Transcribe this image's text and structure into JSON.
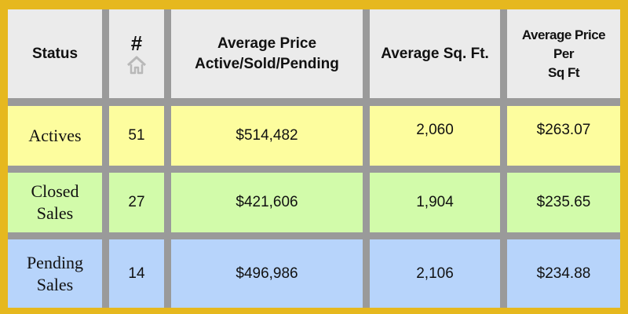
{
  "chart_data": {
    "type": "table",
    "columns": [
      "Status",
      "#",
      "Average Price Active/Sold/Pending",
      "Average Sq. Ft.",
      "Average Price Per Sq Ft"
    ],
    "header": {
      "status": "Status",
      "count": "#",
      "count_icon": "house-icon",
      "avg_price_line1": "Average Price",
      "avg_price_line2": "Active/Sold/Pending",
      "avg_sqft": "Average Sq. Ft.",
      "ppsf_line1": "Average Price",
      "ppsf_line2": "Per",
      "ppsf_line3": "Sq Ft"
    },
    "rows": [
      {
        "status_line1": "Actives",
        "status_line2": "",
        "count": "51",
        "avg_price": "$514,482",
        "avg_sqft": "2,060",
        "price_per_sqft": "$263.07",
        "color": "#fdfd9e"
      },
      {
        "status_line1": "Closed",
        "status_line2": "Sales",
        "count": "27",
        "avg_price": "$421,606",
        "avg_sqft": "1,904",
        "price_per_sqft": "$235.65",
        "color": "#d2fbaa"
      },
      {
        "status_line1": "Pending",
        "status_line2": "Sales",
        "count": "14",
        "avg_price": "$496,986",
        "avg_sqft": "2,106",
        "price_per_sqft": "$234.88",
        "color": "#b7d4fb"
      }
    ],
    "colors": {
      "border": "#e6b81e",
      "grid": "#9a9a9a",
      "header_bg": "#ebebeb"
    }
  }
}
